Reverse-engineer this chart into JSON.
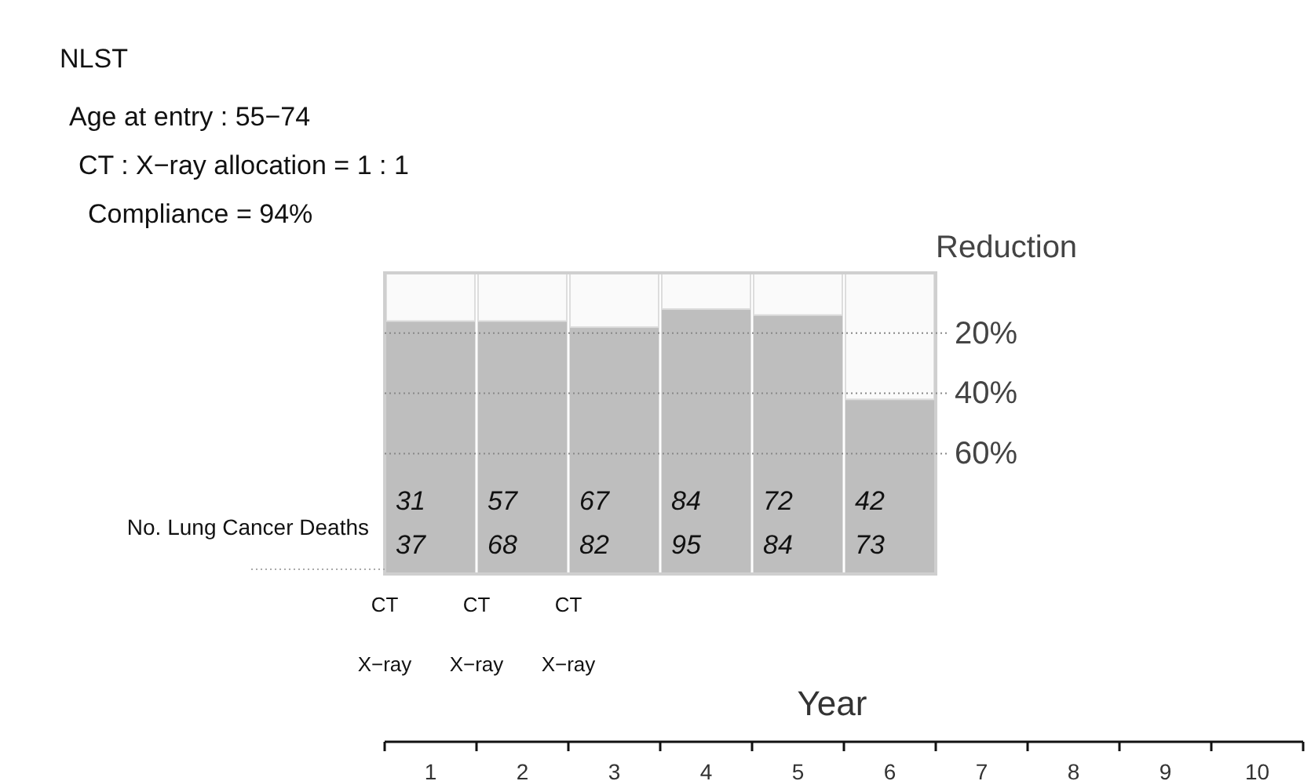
{
  "chart_data": {
    "type": "bar",
    "title": "NLST",
    "subtitle": "Age at entry : 55−74",
    "y2label": "Reduction",
    "xlabel": "Year",
    "categories": [
      "1",
      "2",
      "3",
      "4",
      "5",
      "6",
      "7",
      "8",
      "9",
      "10"
    ],
    "series": [
      {
        "color": "#fafafa",
        "axis": "y2",
        "values": [
          16,
          16,
          18,
          12,
          14,
          42,
          null,
          null,
          null,
          null
        ]
      }
    ],
    "y2lim": [
      100,
      0
    ],
    "y2ticks": [
      {
        "value": 20,
        "label": "20%"
      },
      {
        "value": 40,
        "label": "40%"
      },
      {
        "value": 60,
        "label": "60%"
      }
    ],
    "bands": [
      {
        "axis": "y2",
        "from": 0,
        "to": 100,
        "color": "#bebebe"
      }
    ],
    "ref_lines": [
      {
        "axis": "y2",
        "value": 20,
        "color": "#888888",
        "line_style": "dotted"
      },
      {
        "axis": "y2",
        "value": 40,
        "color": "#888888",
        "line_style": "dotted"
      },
      {
        "axis": "y2",
        "value": 60,
        "color": "#888888",
        "line_style": "dotted"
      }
    ],
    "annotations": [
      "CT : X−ray allocation = 1 : 1",
      "Compliance = 94%",
      "No. Lung Cancer Deaths",
      "31",
      "37",
      "57",
      "68",
      "67",
      "82",
      "84",
      "95",
      "72",
      "84",
      "42",
      "73",
      "CT",
      "X−ray",
      "CT",
      "X−ray",
      "CT",
      "X−ray"
    ]
  }
}
